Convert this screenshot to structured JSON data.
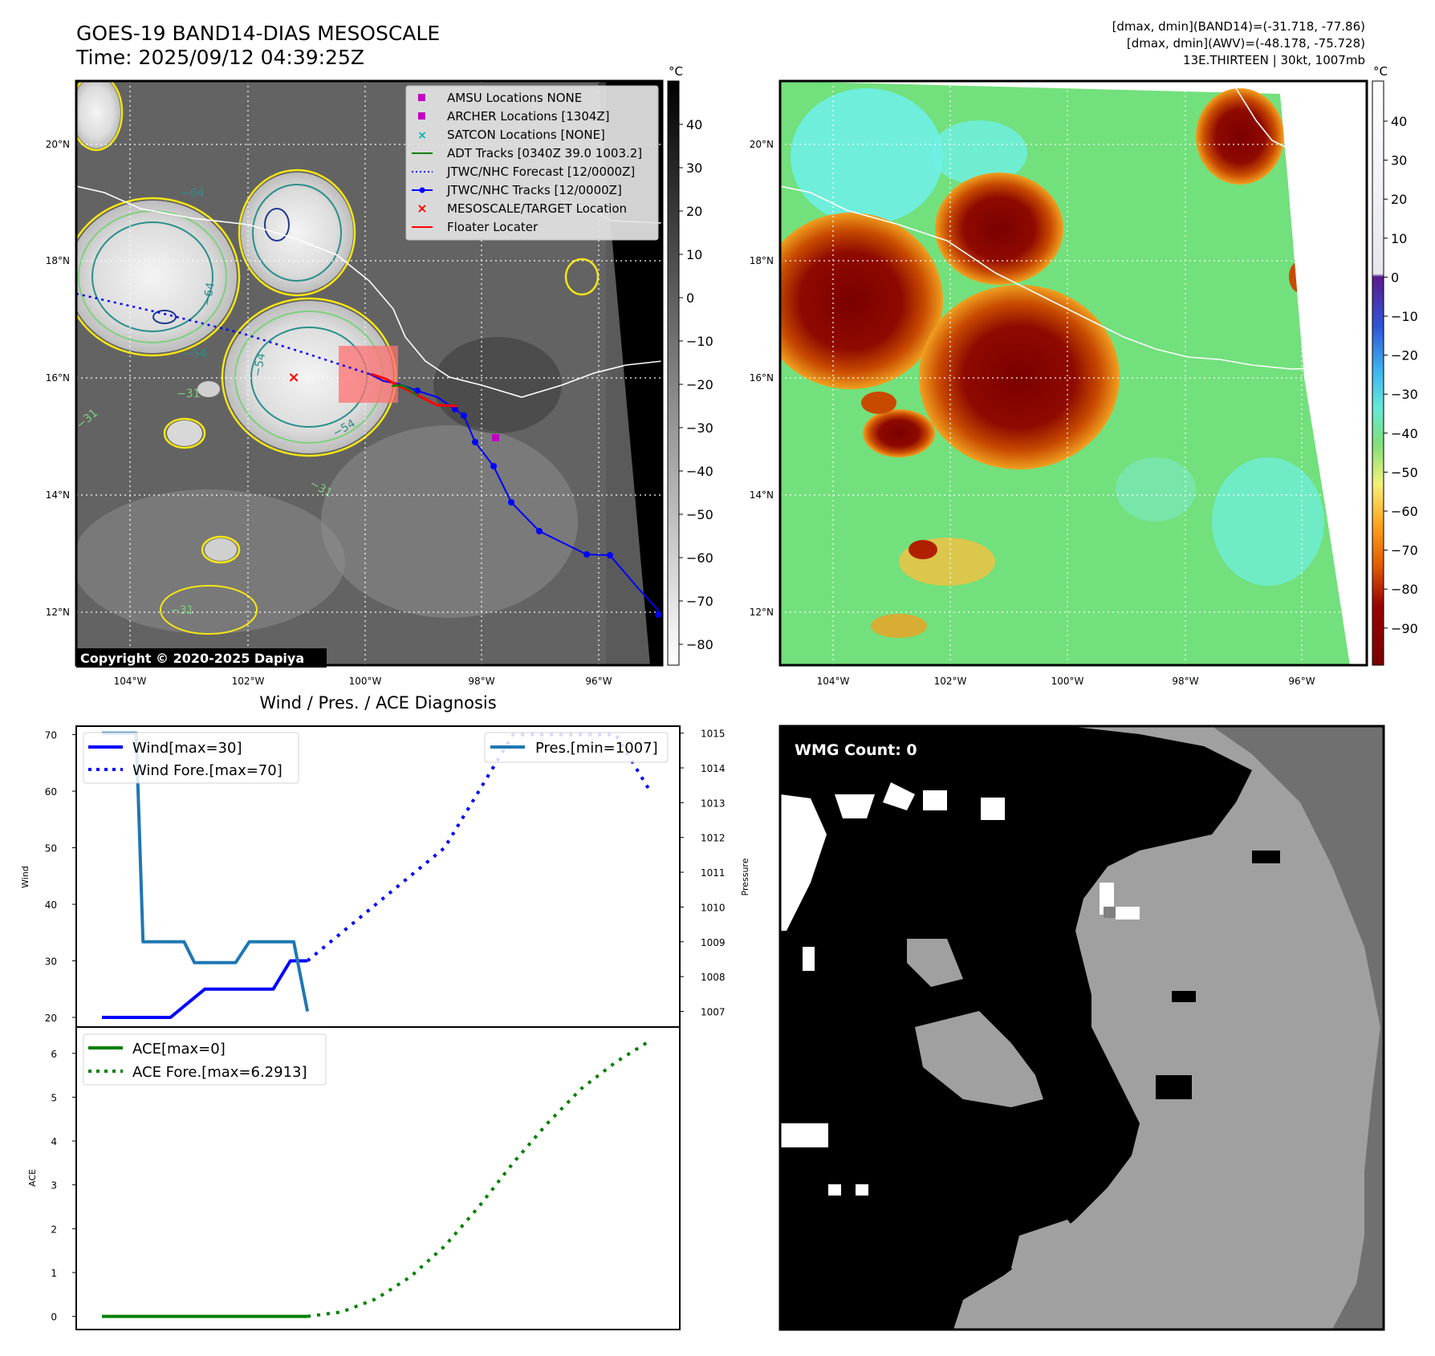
{
  "header": {
    "title": "GOES-19 BAND14-DIAS MESOSCALE",
    "time": "Time: 2025/09/12 04:39:25Z",
    "info_line1": "[dmax, dmin](BAND14)=(-31.718, -77.86)",
    "info_line2": "[dmax, dmin](AWV)=(-48.178, -75.728)",
    "info_line3": "13E.THIRTEEN | 30kt, 1007mb"
  },
  "copyright": "Copyright © 2020-2025 Dapiya",
  "map": {
    "lon_labels": [
      "104°W",
      "102°W",
      "100°W",
      "98°W",
      "96°W"
    ],
    "lat_labels": [
      "20°N",
      "18°N",
      "16°N",
      "14°N",
      "12°N"
    ],
    "colorbar_unit": "°C",
    "left_colorbar_ticks": [
      "40",
      "30",
      "20",
      "10",
      "0",
      "−10",
      "−20",
      "−30",
      "−40",
      "−50",
      "−60",
      "−70",
      "−80"
    ],
    "right_colorbar_ticks": [
      "40",
      "30",
      "20",
      "10",
      "0",
      "−10",
      "−20",
      "−30",
      "−40",
      "−50",
      "−60",
      "−70",
      "−80",
      "−90"
    ],
    "contour_labels": [
      "−64",
      "−64",
      "−54",
      "−54",
      "−31",
      "−31",
      "−31",
      "−31",
      "−54"
    ],
    "legend": [
      {
        "label": "AMSU Locations NONE",
        "color": "#c000c0",
        "marker": "square"
      },
      {
        "label": "ARCHER Locations [1304Z]",
        "color": "#c000c0",
        "marker": "square"
      },
      {
        "label": "SATCON Locations [NONE]",
        "color": "#00b0b0",
        "marker": "x"
      },
      {
        "label": "ADT Tracks [0340Z 39.0 1003.2]",
        "color": "#008000",
        "marker": "line"
      },
      {
        "label": "JTWC/NHC Forecast [12/0000Z]",
        "color": "#0000ff",
        "marker": "dotted"
      },
      {
        "label": "JTWC/NHC Tracks [12/0000Z]",
        "color": "#0000ff",
        "marker": "line-dot"
      },
      {
        "label": "MESOSCALE/TARGET Location",
        "color": "#ff0000",
        "marker": "x"
      },
      {
        "label": "Floater Locater",
        "color": "#ff0000",
        "marker": "line"
      }
    ]
  },
  "wmg": {
    "label": "WMG Count: 0"
  },
  "chart_data": [
    {
      "type": "line",
      "title": "Wind / Pres. / ACE Diagnosis",
      "ylabel": "Wind",
      "y2label": "Pressure",
      "ylim": [
        18.3,
        71.5
      ],
      "y2lim": [
        1006.55,
        1015.2
      ],
      "yticks": [
        20,
        30,
        40,
        50,
        60,
        70
      ],
      "y2ticks": [
        1007,
        1008,
        1009,
        1010,
        1011,
        1012,
        1013,
        1014,
        1015
      ],
      "series": [
        {
          "name": "Wind[max=30]",
          "color": "#0000ff",
          "style": "solid",
          "axis": "left",
          "x": [
            0,
            1,
            2,
            3,
            4,
            5,
            5.5,
            6
          ],
          "values": [
            20,
            20,
            20,
            25,
            25,
            25,
            30,
            30
          ]
        },
        {
          "name": "Wind Fore.[max=70]",
          "color": "#0000ff",
          "style": "dotted",
          "axis": "left",
          "x": [
            6,
            7,
            8,
            9,
            10,
            11,
            12,
            13,
            14,
            15,
            16
          ],
          "values": [
            30,
            35,
            40,
            45,
            50,
            60,
            70,
            70,
            70,
            70,
            60
          ]
        },
        {
          "name": "Pres.[min=1007]",
          "color": "#1f77b4",
          "style": "solid",
          "axis": "right",
          "x": [
            0,
            0.8,
            1,
            1.2,
            2,
            2.4,
            2.7,
            3.3,
            3.9,
            4.3,
            4.7,
            5.2,
            5.6,
            6
          ],
          "values": [
            1015,
            1015,
            1015,
            1009,
            1009,
            1009,
            1008.4,
            1008.4,
            1008.4,
            1009,
            1009,
            1009,
            1009,
            1007
          ]
        }
      ]
    },
    {
      "type": "line",
      "ylabel": "ACE",
      "ylim": [
        -0.3,
        6.6
      ],
      "yticks": [
        0,
        1,
        2,
        3,
        4,
        5,
        6
      ],
      "series": [
        {
          "name": "ACE[max=0]",
          "color": "#008000",
          "style": "solid",
          "x": [
            0,
            6
          ],
          "values": [
            0,
            0
          ]
        },
        {
          "name": "ACE Fore.[max=6.2913]",
          "color": "#008000",
          "style": "dotted",
          "x": [
            6,
            7,
            8,
            9,
            10,
            11,
            12,
            13,
            14,
            15,
            16
          ],
          "values": [
            0,
            0.1,
            0.4,
            0.9,
            1.6,
            2.5,
            3.5,
            4.4,
            5.2,
            5.8,
            6.2913
          ]
        }
      ]
    }
  ]
}
